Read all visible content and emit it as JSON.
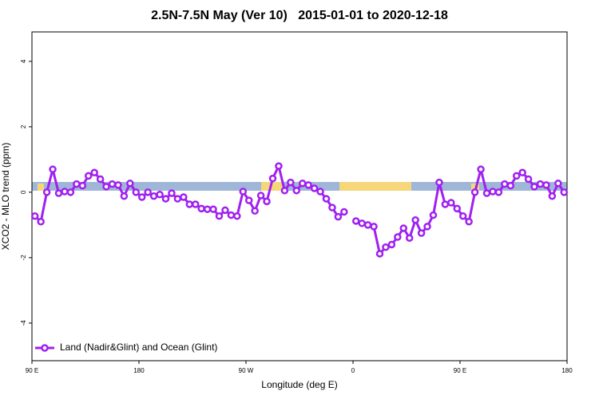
{
  "chart_data": {
    "type": "line",
    "title": "2.5N-7.5N May (Ver 10)   2015-01-01 to 2020-12-18",
    "x_label": "Longitude (deg E)",
    "y_label": "XCO2 - MLO trend (ppm)",
    "x": [
      92.5,
      97.5,
      102.5,
      107.5,
      112.5,
      117.5,
      122.5,
      127.5,
      132.5,
      137.5,
      142.5,
      147.5,
      152.5,
      157.5,
      162.5,
      167.5,
      172.5,
      177.5,
      182.5,
      187.5,
      192.5,
      197.5,
      202.5,
      207.5,
      212.5,
      217.5,
      222.5,
      227.5,
      232.5,
      237.5,
      242.5,
      247.5,
      252.5,
      257.5,
      262.5,
      267.5,
      272.5,
      277.5,
      282.5,
      287.5,
      292.5,
      297.5,
      302.5,
      307.5,
      312.5,
      317.5,
      322.5,
      327.5,
      332.5,
      337.5,
      342.5,
      347.5,
      352.5,
      357.5,
      362.5,
      367.5,
      372.5,
      377.5,
      382.5,
      387.5,
      392.5,
      397.5,
      402.5,
      407.5,
      412.5,
      417.5,
      422.5,
      427.5,
      432.5,
      437.5,
      442.5,
      447.5,
      452.5,
      457.5,
      462.5,
      467.5,
      472.5,
      477.5,
      482.5,
      487.5,
      492.5,
      497.5,
      502.5,
      507.5,
      512.5,
      517.5,
      522.5,
      527.5,
      532.5,
      537.5
    ],
    "series": [
      {
        "name": "Land (Nadir&Glint) and Ocean (Glint)",
        "color": "#a020f0",
        "values": [
          -0.73,
          -0.9,
          0,
          0.7,
          -0.03,
          0.02,
          0,
          0.25,
          0.2,
          0.5,
          0.6,
          0.4,
          0.17,
          0.25,
          0.22,
          -0.12,
          0.27,
          0,
          -0.15,
          0,
          -0.12,
          -0.07,
          -0.2,
          -0.03,
          -0.2,
          -0.15,
          -0.37,
          -0.37,
          -0.5,
          -0.52,
          -0.52,
          -0.73,
          -0.55,
          -0.7,
          -0.73,
          0.02,
          -0.25,
          -0.57,
          -0.1,
          -0.28,
          0.42,
          0.8,
          0.05,
          0.3,
          0.05,
          0.27,
          0.22,
          0.12,
          0.02,
          -0.2,
          -0.47,
          -0.75,
          -0.6,
          null,
          -0.88,
          -0.95,
          -1.0,
          -1.05,
          -1.88,
          -1.68,
          -1.6,
          -1.37,
          -1.1,
          -1.4,
          -0.85,
          -1.25,
          -1.05,
          -0.7,
          0.3,
          -0.37,
          -0.32,
          -0.5,
          -0.73,
          -0.9,
          0,
          0.7,
          -0.03,
          0.02,
          0,
          0.25,
          0.2,
          0.5,
          0.6,
          0.4,
          0.17,
          0.25,
          0.22,
          -0.12,
          0.27,
          0
        ]
      }
    ],
    "xlim": [
      90,
      540
    ],
    "xticks": [
      {
        "value": 90,
        "label": "90 E"
      },
      180,
      {
        "value": 270,
        "label": "90 W"
      },
      {
        "value": 360,
        "label": "0"
      },
      {
        "value": 450,
        "label": "90 E"
      },
      180
    ],
    "ylim": [
      -5.15,
      4.9
    ],
    "yticks": [
      -4,
      -2,
      0,
      2,
      4
    ],
    "legend": "bottom-left"
  }
}
